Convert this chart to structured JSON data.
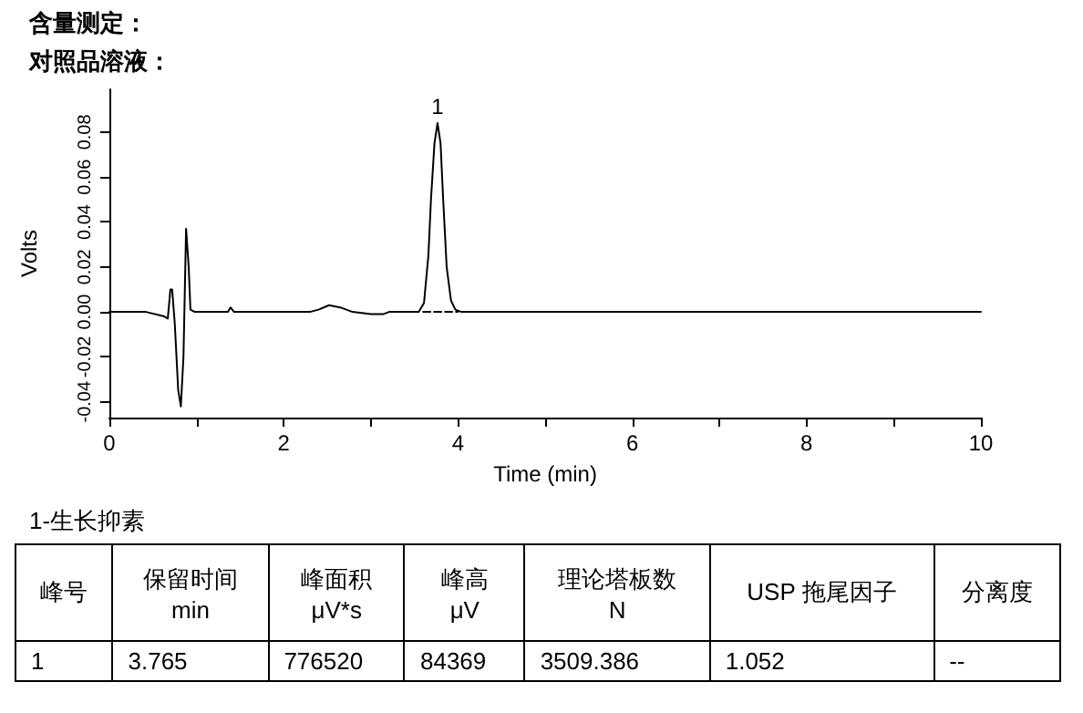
{
  "chart_data": {
    "type": "line",
    "title": "含量测定：",
    "subtitle": "对照品溶液：",
    "xlabel": "Time (min)",
    "ylabel": "Volts",
    "xlim": [
      0,
      10
    ],
    "xticks": [
      0,
      {
        "value": 1,
        "label": null
      },
      2,
      {
        "value": 3,
        "label": null
      },
      4,
      {
        "value": 5,
        "label": null
      },
      6,
      {
        "value": 7,
        "label": null
      },
      8,
      {
        "value": 9,
        "label": null
      },
      10
    ],
    "ylim": [
      -0.047,
      0.099
    ],
    "yticks": [
      -0.04,
      -0.02,
      {
        "value": 0,
        "label": "0.00"
      },
      0.02,
      0.04,
      0.06,
      0.08
    ],
    "grid": false,
    "marker": "none",
    "series": [
      {
        "color": "#000000",
        "line_style": "solid",
        "x": [
          0,
          0.42,
          0.63,
          0.67,
          0.7,
          0.72,
          0.75,
          0.79,
          0.82,
          0.85,
          0.88,
          0.91,
          0.93,
          0.98,
          1.36,
          1.39,
          1.43,
          2.3,
          2.4,
          2.52,
          2.65,
          2.79,
          3.0,
          3.14,
          3.21,
          3.55,
          3.61,
          3.66,
          3.69,
          3.73,
          3.765,
          3.8,
          3.83,
          3.87,
          3.92,
          3.97,
          4.04,
          10
        ],
        "values": [
          0,
          0,
          -0.002,
          -0.003,
          0.01,
          0.01,
          -0.005,
          -0.035,
          -0.042,
          -0.02,
          0.037,
          0.02,
          0.001,
          0,
          0,
          0.002,
          0,
          0,
          0.001,
          0.003,
          0.002,
          0,
          -0.001,
          -0.001,
          0,
          0,
          0.004,
          0.025,
          0.05,
          0.075,
          0.084,
          0.075,
          0.05,
          0.02,
          0.005,
          0.001,
          0,
          0
        ]
      },
      {
        "color": "#000000",
        "line_style": "dashed",
        "x": [
          3.6,
          4.0
        ],
        "values": [
          0,
          0
        ]
      }
    ],
    "annotations": [
      {
        "text": "1",
        "x": 3.765,
        "y": 0.084
      },
      "1-生长抑素",
      "峰号",
      "保留时间\nmin",
      "峰面积\nμV*s",
      "峰高\nμV",
      "理论塔板数\nN",
      "USP 拖尾因子",
      "分离度",
      "1",
      "3.765",
      "776520",
      "84369",
      "3509.386",
      "1.052",
      "--"
    ]
  }
}
